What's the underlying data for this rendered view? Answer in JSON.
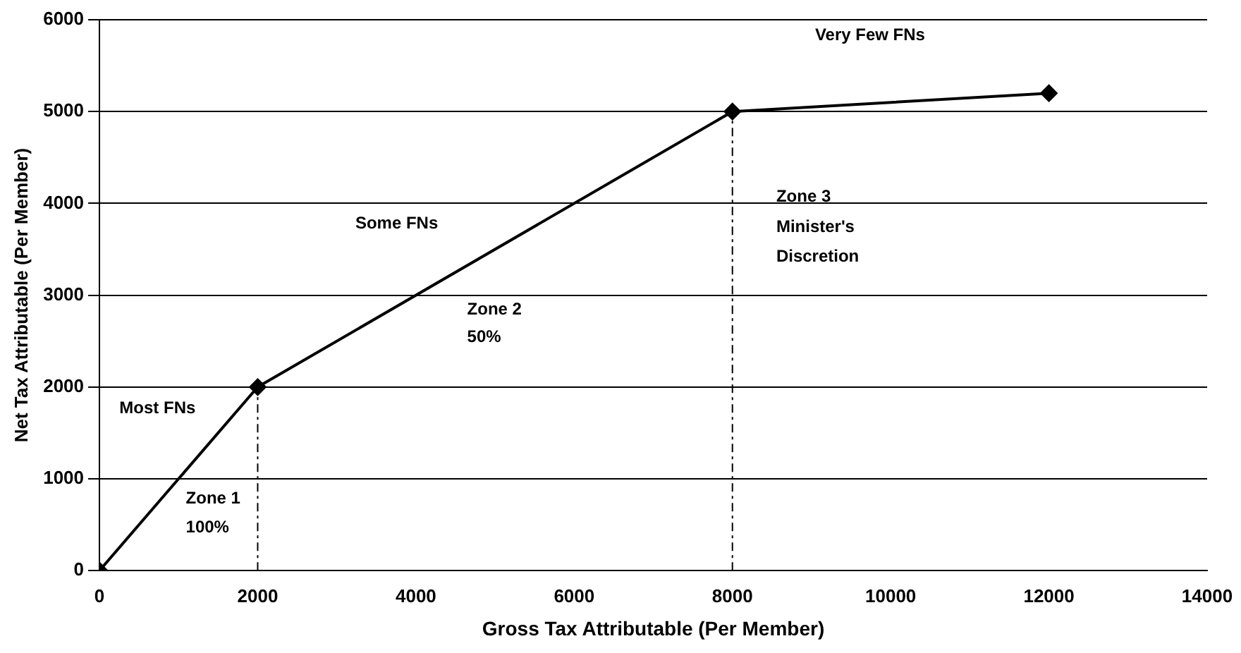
{
  "chart_data": {
    "type": "line",
    "xlabel": "Gross Tax Attributable (Per Member)",
    "ylabel": "Net Tax Attributable (Per Member)",
    "series": [
      {
        "x": [
          0,
          2000,
          8000,
          12000
        ],
        "values": [
          0,
          2000,
          5000,
          5200
        ],
        "color": "#000000",
        "marker": "diamond",
        "line_style": "solid"
      },
      {
        "x": [
          2000,
          2000
        ],
        "values": [
          0,
          2000
        ],
        "color": "#000000",
        "marker": "none",
        "line_style": "dashed"
      },
      {
        "x": [
          8000,
          8000
        ],
        "values": [
          0,
          5000
        ],
        "color": "#000000",
        "marker": "none",
        "line_style": "dashed"
      }
    ],
    "xlim": [
      0,
      14000
    ],
    "xticks": [
      0,
      2000,
      4000,
      6000,
      8000,
      10000,
      12000,
      14000
    ],
    "ylim": [
      0,
      6000
    ],
    "yticks": [
      0,
      1000,
      2000,
      3000,
      4000,
      5000,
      6000
    ],
    "grid": "y",
    "legend": false,
    "annotations": [
      "Very Few FNs",
      "Zone 3",
      "Minister's",
      "Discretion",
      "Some FNs",
      "Zone 2",
      "50%",
      "Most FNs",
      "Zone 1",
      "100%"
    ]
  }
}
